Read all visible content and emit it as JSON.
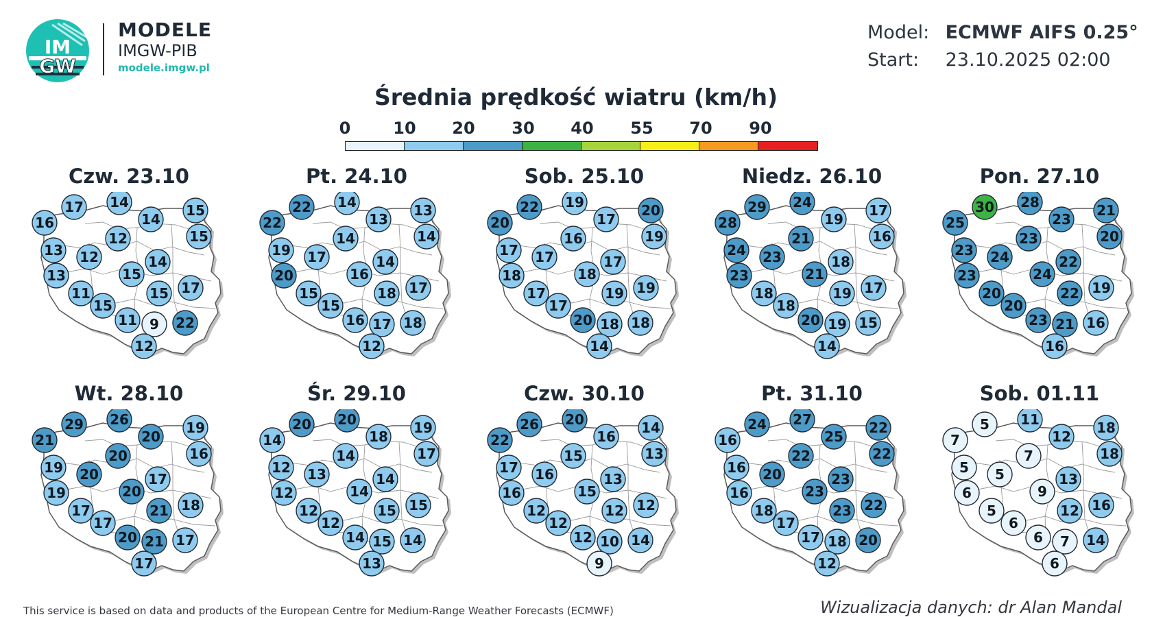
{
  "branding": {
    "logo_text_top": "IM",
    "logo_text_bottom": "GW",
    "title": "MODELE",
    "subtitle": "IMGW-PIB",
    "url": "modele.imgw.pl"
  },
  "model_info": {
    "model_label": "Model:",
    "model_value": "ECMWF AIFS 0.25°",
    "start_label": "Start:",
    "start_value": "23.10.2025 02:00"
  },
  "title": "Średnia prędkość wiatru (km/h)",
  "legend": {
    "ticks": [
      "0",
      "10",
      "20",
      "30",
      "40",
      "55",
      "70",
      "90"
    ],
    "colors": [
      "#e8f4fb",
      "#8ecbee",
      "#4d9bc8",
      "#3db346",
      "#a6d43b",
      "#f6ee19",
      "#f69a22",
      "#e62020"
    ]
  },
  "panels": [
    {
      "date": "Czw. 23.10",
      "values": [
        17,
        14,
        15,
        16,
        14,
        15,
        13,
        12,
        12,
        14,
        13,
        15,
        11,
        15,
        17,
        15,
        11,
        9,
        22,
        12
      ]
    },
    {
      "date": "Pt. 24.10",
      "values": [
        22,
        14,
        13,
        22,
        13,
        14,
        19,
        17,
        14,
        14,
        20,
        16,
        15,
        18,
        17,
        15,
        16,
        17,
        18,
        12
      ]
    },
    {
      "date": "Sob. 25.10",
      "values": [
        22,
        19,
        20,
        20,
        17,
        19,
        17,
        17,
        16,
        17,
        18,
        18,
        17,
        19,
        19,
        17,
        20,
        18,
        18,
        14
      ]
    },
    {
      "date": "Niedz. 26.10",
      "values": [
        29,
        24,
        17,
        28,
        19,
        16,
        24,
        23,
        21,
        18,
        23,
        21,
        18,
        19,
        17,
        18,
        20,
        19,
        15,
        14
      ]
    },
    {
      "date": "Pon. 27.10",
      "values": [
        30,
        28,
        21,
        25,
        23,
        20,
        23,
        24,
        23,
        22,
        23,
        24,
        20,
        22,
        19,
        20,
        23,
        21,
        16,
        16
      ]
    },
    {
      "date": "Wt. 28.10",
      "values": [
        29,
        26,
        19,
        21,
        20,
        16,
        19,
        20,
        20,
        17,
        19,
        20,
        17,
        21,
        18,
        17,
        20,
        21,
        17,
        17
      ]
    },
    {
      "date": "Śr. 29.10",
      "values": [
        20,
        20,
        19,
        14,
        18,
        17,
        12,
        13,
        14,
        14,
        12,
        14,
        12,
        15,
        15,
        12,
        14,
        15,
        14,
        13
      ]
    },
    {
      "date": "Czw. 30.10",
      "values": [
        26,
        20,
        14,
        22,
        16,
        13,
        17,
        16,
        15,
        13,
        16,
        15,
        12,
        12,
        12,
        12,
        12,
        10,
        14,
        9
      ]
    },
    {
      "date": "Pt. 31.10",
      "values": [
        24,
        27,
        22,
        16,
        25,
        22,
        16,
        20,
        22,
        23,
        16,
        23,
        18,
        23,
        22,
        17,
        17,
        18,
        20,
        12
      ]
    },
    {
      "date": "Sob. 01.11",
      "values": [
        5,
        11,
        18,
        7,
        12,
        18,
        5,
        5,
        7,
        13,
        6,
        9,
        5,
        12,
        16,
        6,
        6,
        7,
        14,
        6
      ]
    }
  ],
  "footer": {
    "left": "This service is based on data and products of the European Centre for Medium-Range Weather Forecasts (ECMWF)",
    "right": "Wizualizacja danych: dr Alan Mandal"
  }
}
